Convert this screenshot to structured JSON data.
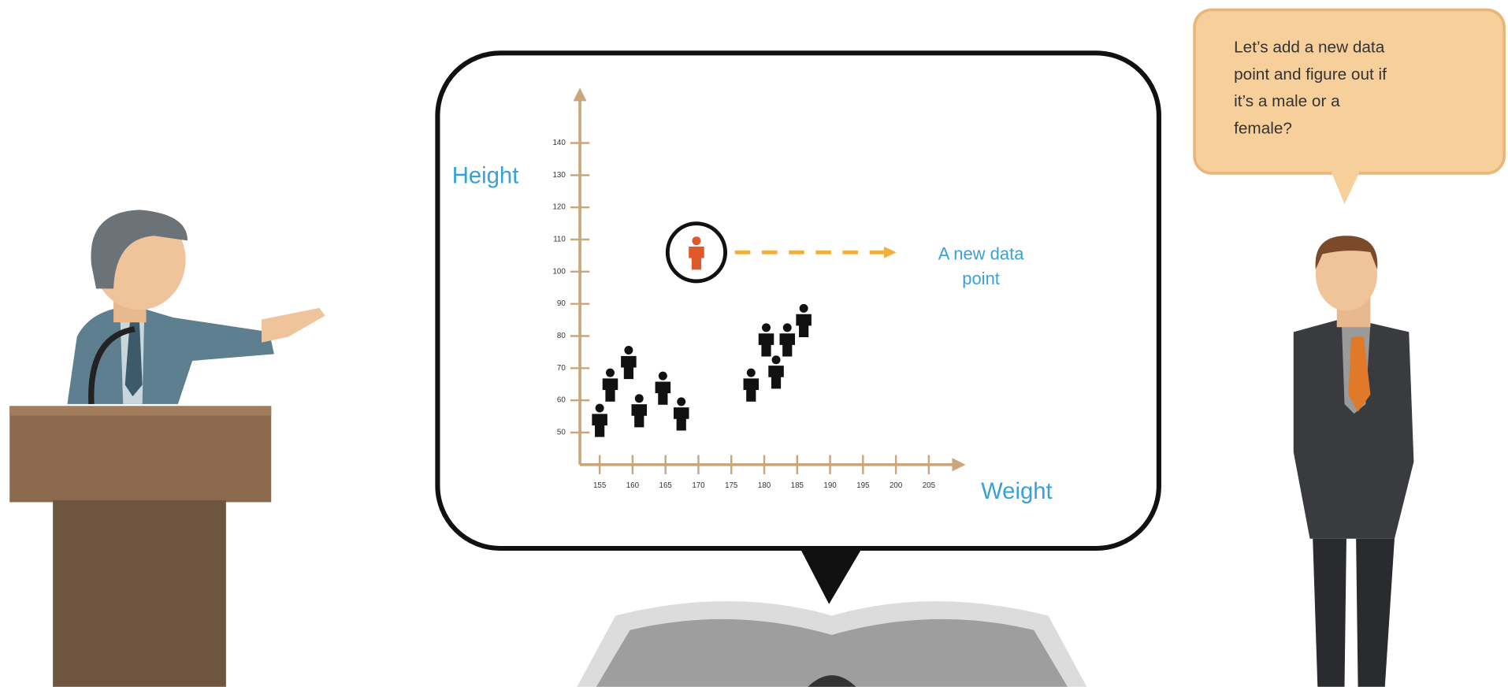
{
  "chart_data": {
    "type": "scatter",
    "x_label": "Weight",
    "y_label": "Height",
    "xlim": [
      152,
      210
    ],
    "ylim": [
      40,
      156
    ],
    "xticks": [
      155,
      160,
      165,
      170,
      175,
      180,
      185,
      190,
      195,
      200,
      205
    ],
    "yticks": [
      50,
      60,
      70,
      80,
      90,
      100,
      110,
      120,
      130,
      140
    ],
    "axis_color": "#c9a77a",
    "series": [
      {
        "color": "#111111",
        "x": [
          155,
          156.6,
          159.4,
          161,
          164.6,
          167.4,
          178,
          180.3,
          181.8,
          183.5,
          186
        ],
        "values": [
          54,
          65,
          72,
          57,
          64,
          56,
          65,
          79,
          69,
          79,
          85
        ]
      },
      {
        "color": "#e0572a",
        "x": [
          169.7
        ],
        "values": [
          106
        ]
      }
    ],
    "annotation": [
      "A new data",
      "point"
    ]
  },
  "speech_bubble": {
    "lines": [
      "Let’s add a new data",
      "point and figure out if",
      "it’s a male or a",
      "female?"
    ]
  }
}
